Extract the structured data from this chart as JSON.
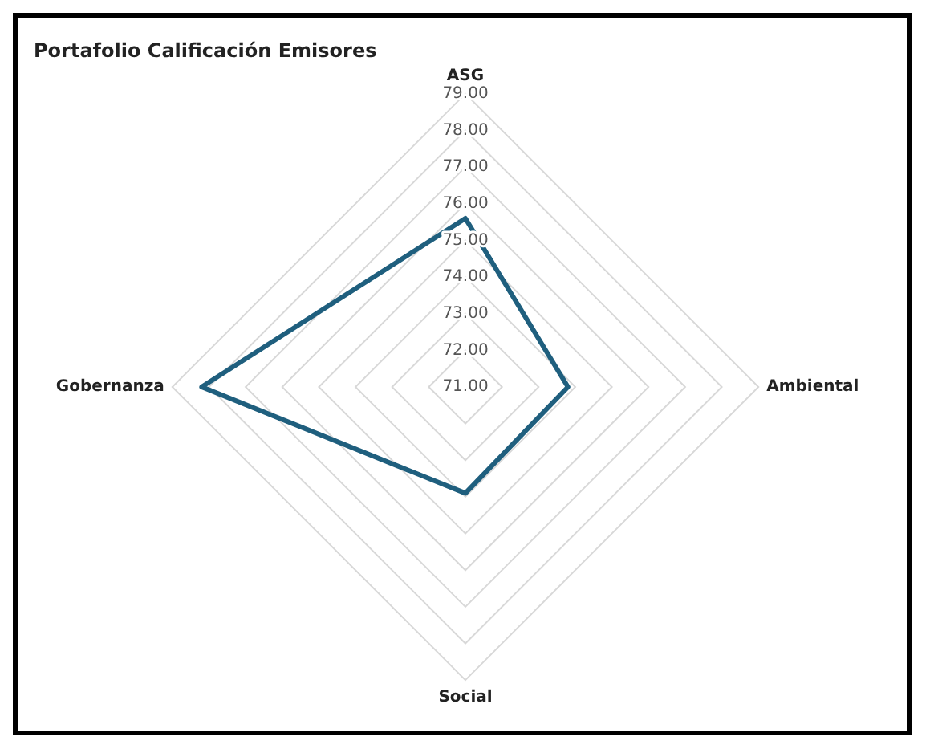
{
  "chart_data": {
    "type": "radar",
    "title": "Portafolio Calificación Emisores",
    "categories": [
      "ASG",
      "Ambiental",
      "Social",
      "Gobernanza"
    ],
    "series": [
      {
        "color": "#1f5f7e",
        "values": [
          75.6,
          73.8,
          73.9,
          78.2
        ]
      }
    ],
    "ylim": [
      71,
      79
    ],
    "yticks": [
      {
        "value": 71,
        "label": "71.00"
      },
      {
        "value": 72,
        "label": "72.00"
      },
      {
        "value": 73,
        "label": "73.00"
      },
      {
        "value": 74,
        "label": "74.00"
      },
      {
        "value": 75,
        "label": "75.00"
      },
      {
        "value": 76,
        "label": "76.00"
      },
      {
        "value": 77,
        "label": "77.00"
      },
      {
        "value": 78,
        "label": "78.00"
      },
      {
        "value": 79,
        "label": "79.00"
      }
    ],
    "grid": true,
    "legend": false,
    "marker": "none",
    "line_style": "solid"
  }
}
